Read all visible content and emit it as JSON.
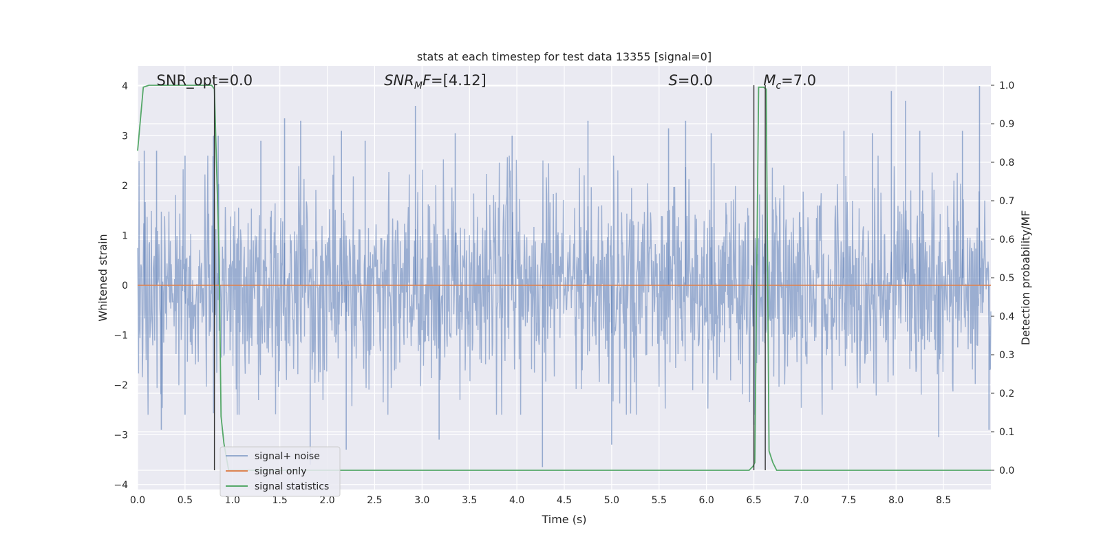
{
  "chart_data": {
    "type": "line",
    "title": "stats at each timestep for test data 13355 [signal=0]",
    "xlabel": "Time (s)",
    "ylabel": "Whitened strain",
    "y2label": "Detection probability/MF",
    "xlim": [
      0.0,
      9.0
    ],
    "ylim": [
      -4.1,
      4.4
    ],
    "y2lim": [
      -0.05,
      1.05
    ],
    "xticks": [
      0.0,
      0.5,
      1.0,
      1.5,
      2.0,
      2.5,
      3.0,
      3.5,
      4.0,
      4.5,
      5.0,
      5.5,
      6.0,
      6.5,
      7.0,
      7.5,
      8.0,
      8.5
    ],
    "xtick_labels": [
      "0.0",
      "0.5",
      "1.0",
      "1.5",
      "2.0",
      "2.5",
      "3.0",
      "3.5",
      "4.0",
      "4.5",
      "5.0",
      "5.5",
      "6.0",
      "6.5",
      "7.0",
      "7.5",
      "8.0",
      "8.5"
    ],
    "yticks": [
      -4,
      -3,
      -2,
      -1,
      0,
      1,
      2,
      3,
      4
    ],
    "ytick_labels": [
      "−4",
      "−3",
      "−2",
      "−1",
      "0",
      "1",
      "2",
      "3",
      "4"
    ],
    "y2ticks": [
      0.0,
      0.1,
      0.2,
      0.3,
      0.4,
      0.5,
      0.6,
      0.7,
      0.8,
      0.9,
      1.0
    ],
    "y2tick_labels": [
      "0.0",
      "0.1",
      "0.2",
      "0.3",
      "0.4",
      "0.5",
      "0.6",
      "0.7",
      "0.8",
      "0.9",
      "1.0"
    ],
    "grid": true,
    "legend": "lower-left",
    "colors": {
      "noise": "#4c72b0",
      "signal": "#dd8452",
      "statistics": "#55a868",
      "vline": "#333333",
      "background": "#eaeaf2",
      "grid": "#ffffff"
    },
    "annotations": [
      {
        "id": "snr-opt",
        "x": 0.2,
        "y": 4.0,
        "prefix": "SNR_opt=",
        "italic": "",
        "sub": "",
        "suffix": "0.0"
      },
      {
        "id": "snr-mf",
        "x": 2.6,
        "y": 4.0,
        "prefix": "",
        "italic": "SNR",
        "sub": "M",
        "italic2": "F",
        "suffix": "=[4.12]"
      },
      {
        "id": "s-stat",
        "x": 5.6,
        "y": 4.0,
        "prefix": "",
        "italic": "S",
        "sub": "",
        "suffix": "=0.0"
      },
      {
        "id": "chirp-mass",
        "x": 6.6,
        "y": 4.0,
        "prefix": "",
        "italic": "M",
        "sub": "c",
        "suffix": "=7.0"
      }
    ],
    "vlines": [
      0.81,
      6.5,
      6.62
    ],
    "series": [
      {
        "name": "signal+ noise",
        "kind": "noise",
        "sample_count": 1800,
        "band_sigma": 1.0,
        "spikes": [
          {
            "x": 0.07,
            "y": 2.7
          },
          {
            "x": 0.2,
            "y": 2.7
          },
          {
            "x": 0.5,
            "y": 2.6
          },
          {
            "x": 0.5,
            "y": -2.6
          },
          {
            "x": 0.8,
            "y": 3.0
          },
          {
            "x": 0.85,
            "y": 3.0
          },
          {
            "x": 0.25,
            "y": -2.9
          },
          {
            "x": 1.3,
            "y": 2.9
          },
          {
            "x": 1.55,
            "y": 3.35
          },
          {
            "x": 1.72,
            "y": 3.3
          },
          {
            "x": 1.82,
            "y": -3.6
          },
          {
            "x": 2.15,
            "y": 3.1
          },
          {
            "x": 2.2,
            "y": -3.3
          },
          {
            "x": 2.4,
            "y": 2.9
          },
          {
            "x": 2.93,
            "y": 3.6
          },
          {
            "x": 3.18,
            "y": -3.1
          },
          {
            "x": 3.35,
            "y": 3.05
          },
          {
            "x": 3.95,
            "y": 3.0
          },
          {
            "x": 4.27,
            "y": -3.65
          },
          {
            "x": 4.75,
            "y": 3.3
          },
          {
            "x": 5.0,
            "y": -3.2
          },
          {
            "x": 5.6,
            "y": 3.15
          },
          {
            "x": 5.78,
            "y": 3.3
          },
          {
            "x": 6.05,
            "y": 3.05
          },
          {
            "x": 6.5,
            "y": -2.8
          },
          {
            "x": 7.45,
            "y": 3.1
          },
          {
            "x": 7.75,
            "y": 3.05
          },
          {
            "x": 7.95,
            "y": 3.9
          },
          {
            "x": 8.1,
            "y": 3.7
          },
          {
            "x": 8.25,
            "y": 3.1
          },
          {
            "x": 8.45,
            "y": -3.05
          },
          {
            "x": 8.88,
            "y": 4.0
          },
          {
            "x": 8.7,
            "y": 3.1
          },
          {
            "x": 8.98,
            "y": -2.9
          }
        ]
      },
      {
        "name": "signal only",
        "kind": "line",
        "axis": "left",
        "points": [
          [
            0.0,
            0.0
          ],
          [
            9.0,
            0.0
          ]
        ]
      },
      {
        "name": "signal statistics",
        "kind": "line",
        "axis": "right",
        "points": [
          [
            0.0,
            0.83
          ],
          [
            0.06,
            0.995
          ],
          [
            0.12,
            1.0
          ],
          [
            0.78,
            1.0
          ],
          [
            0.81,
            0.99
          ],
          [
            0.86,
            0.55
          ],
          [
            0.88,
            0.14
          ],
          [
            0.91,
            0.07
          ],
          [
            0.96,
            0.0
          ],
          [
            6.45,
            0.0
          ],
          [
            6.49,
            0.01
          ],
          [
            6.51,
            0.02
          ],
          [
            6.55,
            0.995
          ],
          [
            6.6,
            0.995
          ],
          [
            6.63,
            0.99
          ],
          [
            6.66,
            0.05
          ],
          [
            6.7,
            0.02
          ],
          [
            6.74,
            0.0
          ],
          [
            9.0,
            0.0
          ]
        ]
      }
    ]
  }
}
